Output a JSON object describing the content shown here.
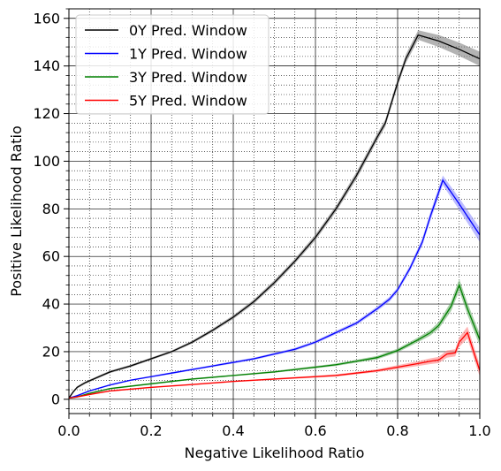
{
  "chart_data": {
    "type": "line",
    "xlabel": "Negative Likelihood Ratio",
    "ylabel": "Positive Likelihood Ratio",
    "xlim": [
      0.0,
      1.0
    ],
    "ylim": [
      -6,
      164
    ],
    "xticks": [
      0.0,
      0.2,
      0.4,
      0.6,
      0.8,
      1.0
    ],
    "xtick_labels": [
      "0.0",
      "0.2",
      "0.4",
      "0.6",
      "0.8",
      "1.0"
    ],
    "yticks": [
      0,
      20,
      40,
      60,
      80,
      100,
      120,
      140,
      160
    ],
    "ytick_labels": [
      "0",
      "20",
      "40",
      "60",
      "80",
      "100",
      "120",
      "140",
      "160"
    ],
    "grid": {
      "major": true,
      "minor": true,
      "major_style": "solid",
      "minor_style": "dotted"
    },
    "legend_position": "top-left",
    "series": [
      {
        "name": "0Y Pred. Window",
        "color": "#000000",
        "band_color": "#808080",
        "x": [
          0.0,
          0.01,
          0.02,
          0.04,
          0.06,
          0.08,
          0.1,
          0.15,
          0.2,
          0.25,
          0.3,
          0.35,
          0.4,
          0.45,
          0.5,
          0.55,
          0.6,
          0.65,
          0.7,
          0.75,
          0.77,
          0.8,
          0.82,
          0.85,
          0.9,
          0.95,
          1.0
        ],
        "y": [
          0.5,
          3,
          5,
          7,
          8.5,
          10,
          11.5,
          14,
          17,
          20,
          24,
          29,
          34.5,
          41,
          49,
          58,
          68,
          80,
          94,
          110,
          116,
          133,
          143,
          153,
          150.5,
          147,
          143
        ],
        "band": [
          0.5,
          0.5,
          0.5,
          0.5,
          0.5,
          0.5,
          0.5,
          0.5,
          0.5,
          0.5,
          0.6,
          0.7,
          0.8,
          0.9,
          1,
          1,
          1.2,
          1.3,
          1.5,
          1.5,
          1.5,
          1.5,
          1.8,
          2,
          2.5,
          2.8,
          3
        ]
      },
      {
        "name": "1Y Pred. Window",
        "color": "#0000ff",
        "band_color": "#9090ff",
        "x": [
          0.0,
          0.02,
          0.05,
          0.1,
          0.15,
          0.2,
          0.25,
          0.3,
          0.35,
          0.4,
          0.45,
          0.5,
          0.55,
          0.6,
          0.65,
          0.7,
          0.75,
          0.78,
          0.8,
          0.83,
          0.86,
          0.88,
          0.91,
          0.95,
          1.0
        ],
        "y": [
          0.5,
          1.5,
          3.5,
          6,
          8,
          9.5,
          11,
          12.5,
          14,
          15.5,
          17,
          19,
          21,
          24,
          28,
          32,
          38,
          42,
          46,
          55,
          66,
          77,
          92,
          82,
          69
        ],
        "band": [
          0.3,
          0.3,
          0.3,
          0.3,
          0.3,
          0.3,
          0.4,
          0.4,
          0.4,
          0.5,
          0.5,
          0.5,
          0.6,
          0.6,
          0.7,
          0.8,
          0.9,
          1,
          1,
          1.2,
          1.5,
          1.8,
          2,
          2.5,
          3
        ]
      },
      {
        "name": "3Y Pred. Window",
        "color": "#008000",
        "band_color": "#70b070",
        "x": [
          0.0,
          0.02,
          0.05,
          0.1,
          0.2,
          0.3,
          0.4,
          0.5,
          0.6,
          0.65,
          0.7,
          0.75,
          0.8,
          0.85,
          0.88,
          0.9,
          0.93,
          0.95,
          0.97,
          1.0
        ],
        "y": [
          0.5,
          1,
          2.5,
          4.5,
          6.5,
          8.5,
          10,
          11.5,
          13.5,
          14.5,
          16,
          17.5,
          20.5,
          25,
          28,
          31,
          39,
          48,
          38,
          25
        ],
        "band": [
          0.3,
          0.3,
          0.3,
          0.3,
          0.3,
          0.3,
          0.3,
          0.4,
          0.5,
          0.5,
          0.6,
          0.7,
          0.8,
          1,
          1.2,
          1.4,
          2,
          2.5,
          2.5,
          2.5
        ]
      },
      {
        "name": "5Y Pred. Window",
        "color": "#ff0000",
        "band_color": "#ff8080",
        "x": [
          0.0,
          0.02,
          0.05,
          0.1,
          0.2,
          0.3,
          0.4,
          0.5,
          0.6,
          0.65,
          0.7,
          0.75,
          0.8,
          0.85,
          0.88,
          0.9,
          0.92,
          0.94,
          0.95,
          0.97,
          1.0
        ],
        "y": [
          0.5,
          1,
          2,
          3.5,
          5,
          6.2,
          7.5,
          8.5,
          9.5,
          10,
          11,
          12,
          13.5,
          15,
          16,
          16.5,
          19,
          19.5,
          24,
          28,
          12
        ],
        "band": [
          0.3,
          0.3,
          0.3,
          0.3,
          0.3,
          0.3,
          0.3,
          0.3,
          0.4,
          0.5,
          0.5,
          0.6,
          0.8,
          1,
          1.2,
          1.3,
          1.5,
          1.5,
          2,
          2.5,
          2.5
        ]
      }
    ]
  }
}
